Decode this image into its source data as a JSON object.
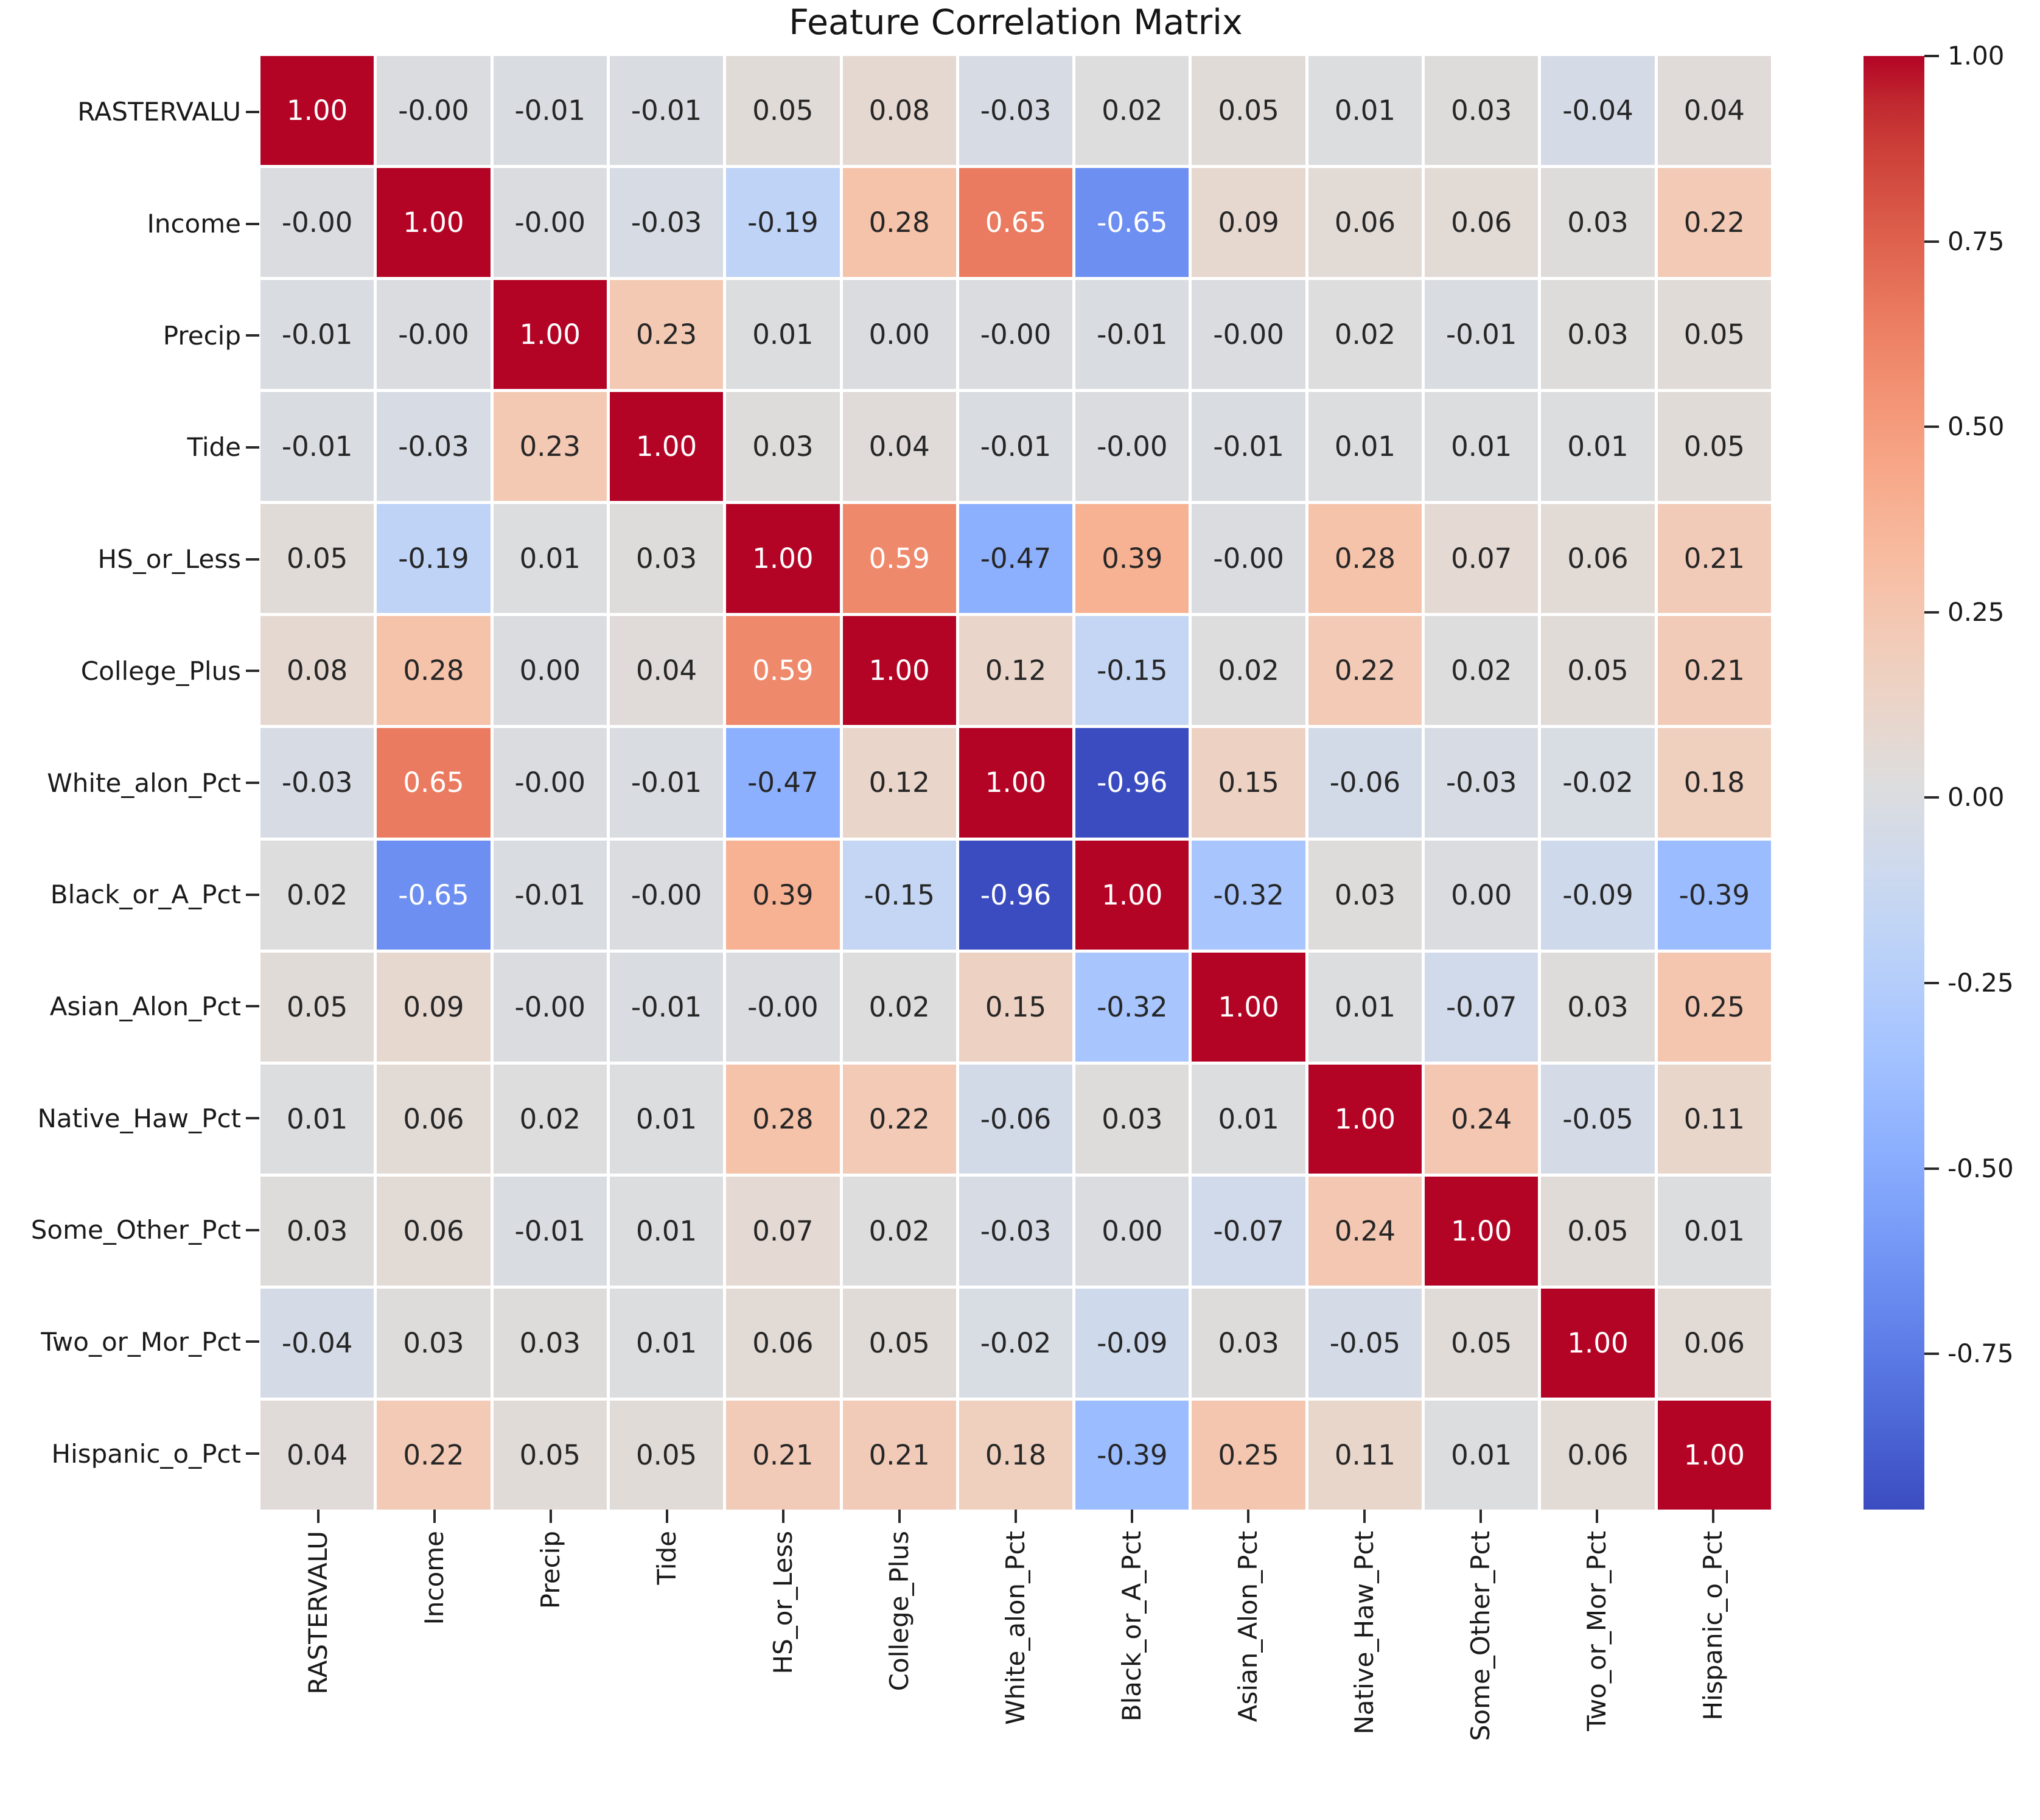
{
  "title": "Feature Correlation Matrix",
  "chart_data": {
    "type": "heatmap",
    "title": "Feature Correlation Matrix",
    "features": [
      "RASTERVALU",
      "Income",
      "Precip",
      "Tide",
      "HS_or_Less",
      "College_Plus",
      "White_alon_Pct",
      "Black_or_A_Pct",
      "Asian_Alon_Pct",
      "Native_Haw_Pct",
      "Some_Other_Pct",
      "Two_or_Mor_Pct",
      "Hispanic_o_Pct"
    ],
    "cell_text": [
      [
        "1.00",
        "-0.00",
        "-0.01",
        "-0.01",
        "0.05",
        "0.08",
        "-0.03",
        "0.02",
        "0.05",
        "0.01",
        "0.03",
        "-0.04",
        "0.04"
      ],
      [
        "-0.00",
        "1.00",
        "-0.00",
        "-0.03",
        "-0.19",
        "0.28",
        "0.65",
        "-0.65",
        "0.09",
        "0.06",
        "0.06",
        "0.03",
        "0.22"
      ],
      [
        "-0.01",
        "-0.00",
        "1.00",
        "0.23",
        "0.01",
        "0.00",
        "-0.00",
        "-0.01",
        "-0.00",
        "0.02",
        "-0.01",
        "0.03",
        "0.05"
      ],
      [
        "-0.01",
        "-0.03",
        "0.23",
        "1.00",
        "0.03",
        "0.04",
        "-0.01",
        "-0.00",
        "-0.01",
        "0.01",
        "0.01",
        "0.01",
        "0.05"
      ],
      [
        "0.05",
        "-0.19",
        "0.01",
        "0.03",
        "1.00",
        "0.59",
        "-0.47",
        "0.39",
        "-0.00",
        "0.28",
        "0.07",
        "0.06",
        "0.21"
      ],
      [
        "0.08",
        "0.28",
        "0.00",
        "0.04",
        "0.59",
        "1.00",
        "0.12",
        "-0.15",
        "0.02",
        "0.22",
        "0.02",
        "0.05",
        "0.21"
      ],
      [
        "-0.03",
        "0.65",
        "-0.00",
        "-0.01",
        "-0.47",
        "0.12",
        "1.00",
        "-0.96",
        "0.15",
        "-0.06",
        "-0.03",
        "-0.02",
        "0.18"
      ],
      [
        "0.02",
        "-0.65",
        "-0.01",
        "-0.00",
        "0.39",
        "-0.15",
        "-0.96",
        "1.00",
        "-0.32",
        "0.03",
        "0.00",
        "-0.09",
        "-0.39"
      ],
      [
        "0.05",
        "0.09",
        "-0.00",
        "-0.01",
        "-0.00",
        "0.02",
        "0.15",
        "-0.32",
        "1.00",
        "0.01",
        "-0.07",
        "0.03",
        "0.25"
      ],
      [
        "0.01",
        "0.06",
        "0.02",
        "0.01",
        "0.28",
        "0.22",
        "-0.06",
        "0.03",
        "0.01",
        "1.00",
        "0.24",
        "-0.05",
        "0.11"
      ],
      [
        "0.03",
        "0.06",
        "-0.01",
        "0.01",
        "0.07",
        "0.02",
        "-0.03",
        "0.00",
        "-0.07",
        "0.24",
        "1.00",
        "0.05",
        "0.01"
      ],
      [
        "-0.04",
        "0.03",
        "0.03",
        "0.01",
        "0.06",
        "0.05",
        "-0.02",
        "-0.09",
        "0.03",
        "-0.05",
        "0.05",
        "1.00",
        "0.06"
      ],
      [
        "0.04",
        "0.22",
        "0.05",
        "0.05",
        "0.21",
        "0.21",
        "0.18",
        "-0.39",
        "0.25",
        "0.11",
        "0.01",
        "0.06",
        "1.00"
      ]
    ],
    "colormap": "coolwarm",
    "vmin": -0.96,
    "vmax": 1.0,
    "colorbar_ticks": [
      {
        "value": 1.0,
        "label": "1.00"
      },
      {
        "value": 0.75,
        "label": "0.75"
      },
      {
        "value": 0.5,
        "label": "0.50"
      },
      {
        "value": 0.25,
        "label": "0.25"
      },
      {
        "value": 0.0,
        "label": "0.00"
      },
      {
        "value": -0.25,
        "label": "-0.25"
      },
      {
        "value": -0.5,
        "label": "-0.50"
      },
      {
        "value": -0.75,
        "label": "-0.75"
      }
    ],
    "colors": {
      "strong_positive": "#b40426",
      "neutral": "#dddddd",
      "strong_negative": "#3b4cc0",
      "annotation_dark": "#262626",
      "annotation_light": "#ffffff",
      "background": "#ffffff"
    }
  }
}
